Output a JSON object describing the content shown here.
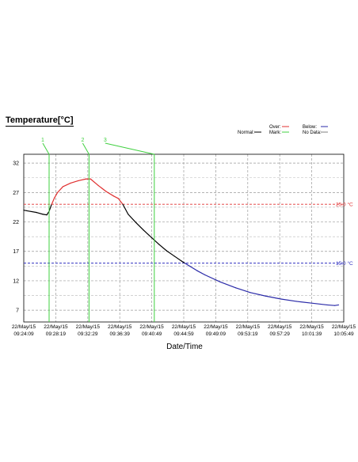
{
  "chart_data": {
    "type": "line",
    "title": "Temperature[°C]",
    "xlabel": "Date/Time",
    "ylabel": "",
    "x_ticks": [
      [
        "22/May/15",
        "09:24:09"
      ],
      [
        "22/May/15",
        "09:28:19"
      ],
      [
        "22/May/15",
        "09:32:29"
      ],
      [
        "22/May/15",
        "09:36:39"
      ],
      [
        "22/May/15",
        "09:40:49"
      ],
      [
        "22/May/15",
        "09:44:59"
      ],
      [
        "22/May/15",
        "09:49:09"
      ],
      [
        "22/May/15",
        "09:53:19"
      ],
      [
        "22/May/15",
        "09:57:29"
      ],
      [
        "22/May/15",
        "10:01:39"
      ],
      [
        "22/May/15",
        "10:05:49"
      ]
    ],
    "y_ticks": [
      "32",
      "27",
      "22",
      "17",
      "12",
      "7"
    ],
    "ylim": [
      5,
      33.5
    ],
    "xlim": [
      0,
      41.67
    ],
    "grid": true,
    "thresholds": [
      {
        "label": "25.0 °C",
        "value": 25,
        "color": "#e03030"
      },
      {
        "label": "15.0 °C",
        "value": 15,
        "color": "#3030c0"
      }
    ],
    "marks": [
      {
        "label": "1",
        "x": 3.3
      },
      {
        "label": "2",
        "x": 8.5
      },
      {
        "label": "3",
        "x": 17.0
      }
    ],
    "legend": {
      "placement": "top-right",
      "items": [
        {
          "label": "Normal:",
          "color": "#000000"
        },
        {
          "label": "Over:",
          "color": "#e03030"
        },
        {
          "label": "Mark:",
          "color": "#40d040"
        },
        {
          "label": "Below:",
          "color": "#2a2aa8"
        },
        {
          "label": "No Data:",
          "color": "#808080"
        }
      ]
    },
    "series": [
      {
        "x": [
          0,
          0.4,
          1.7,
          2.5,
          3.0,
          3.3,
          3.6,
          4.0,
          4.4,
          5.1,
          6.1,
          7.1,
          8.1,
          8.7,
          9.7,
          10.7,
          11.7,
          12.3,
          12.9,
          13.6,
          14.6,
          15.6,
          16.6,
          17.6,
          18.6,
          19.6,
          20.6,
          21.6,
          22.6,
          23.6,
          25.6,
          27.6,
          29.5,
          31.5,
          33.5,
          35.5,
          37.5,
          39.5,
          40.5,
          41.0
        ],
        "y": [
          24.0,
          23.9,
          23.6,
          23.3,
          23.2,
          23.8,
          24.9,
          26.1,
          27.0,
          28.0,
          28.6,
          29.0,
          29.3,
          29.3,
          28.2,
          27.2,
          26.4,
          26.0,
          25.0,
          23.3,
          21.9,
          20.6,
          19.4,
          18.2,
          17.1,
          16.2,
          15.3,
          14.5,
          13.7,
          13.0,
          11.8,
          10.8,
          10.0,
          9.4,
          8.9,
          8.5,
          8.2,
          7.9,
          7.8,
          7.9
        ]
      }
    ]
  }
}
